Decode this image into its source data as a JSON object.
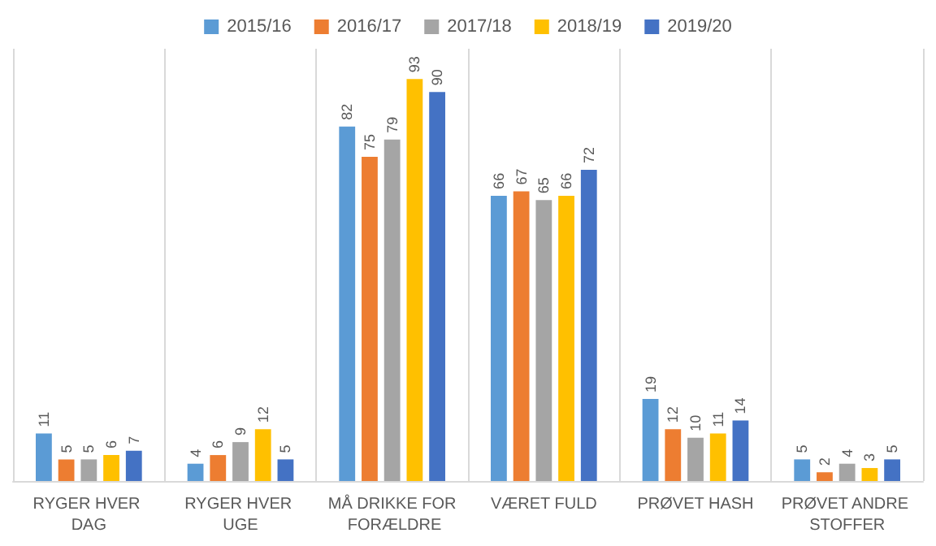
{
  "chart_data": {
    "type": "bar",
    "categories": [
      "RYGER HVER DAG",
      "RYGER HVER UGE",
      "MÅ DRIKKE FOR FORÆLDRE",
      "VÆRET FULD",
      "PRØVET HASH",
      "PRØVET ANDRE STOFFER"
    ],
    "series": [
      {
        "name": "2015/16",
        "color": "#5b9bd5",
        "values": [
          11,
          4,
          82,
          66,
          19,
          5
        ]
      },
      {
        "name": "2016/17",
        "color": "#ed7d31",
        "values": [
          5,
          6,
          75,
          67,
          12,
          2
        ]
      },
      {
        "name": "2017/18",
        "color": "#a5a5a5",
        "values": [
          5,
          9,
          79,
          65,
          10,
          4
        ]
      },
      {
        "name": "2018/19",
        "color": "#ffc000",
        "values": [
          6,
          12,
          93,
          66,
          11,
          3
        ]
      },
      {
        "name": "2019/20",
        "color": "#4472c4",
        "values": [
          7,
          5,
          90,
          72,
          14,
          5
        ]
      }
    ],
    "data_labels": true,
    "grid": "x",
    "legend": "top"
  }
}
